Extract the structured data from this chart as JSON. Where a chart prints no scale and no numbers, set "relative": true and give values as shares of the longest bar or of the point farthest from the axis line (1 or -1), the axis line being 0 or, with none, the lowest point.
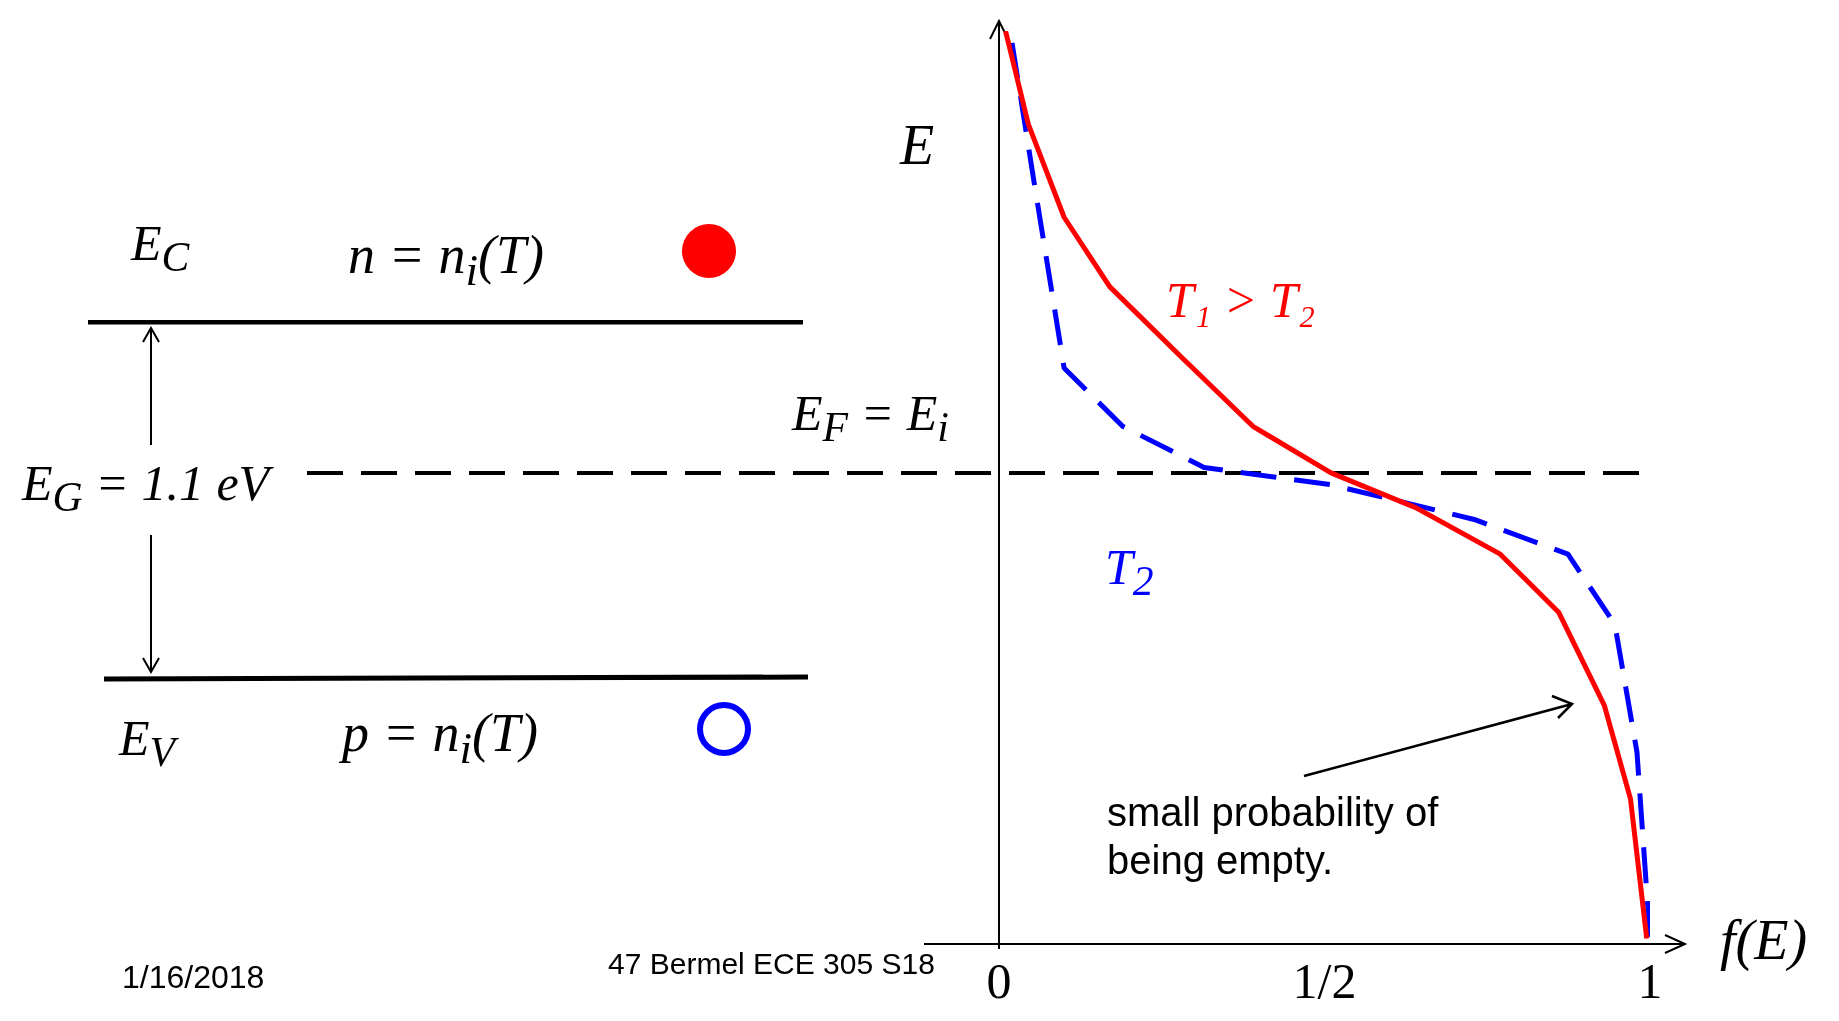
{
  "chart_data": {
    "type": "line",
    "relative": true,
    "xlabel": "f(E)",
    "ylabel": "E",
    "xlim": [
      0,
      1
    ],
    "xticks": [
      0,
      {
        "value": 0.5,
        "label": "1/2"
      },
      1
    ],
    "grid": false,
    "legend": false,
    "marker": "none",
    "series": [
      {
        "color": "#ff0000",
        "line_style": "solid",
        "x": [
          0.01,
          0.045,
          0.1,
          0.17,
          0.28,
          0.39,
          0.51,
          0.64,
          0.77,
          0.86,
          0.93,
          0.97,
          0.995
        ],
        "values": [
          1.0,
          0.898,
          0.796,
          0.72,
          0.643,
          0.567,
          0.516,
          0.478,
          0.427,
          0.363,
          0.261,
          0.159,
          0.006
        ]
      },
      {
        "name": "T$_{2}$",
        "color": "#0000ff",
        "line_style": "dashed",
        "x": [
          0.02,
          0.054,
          0.1,
          0.19,
          0.315,
          0.51,
          0.73,
          0.874,
          0.946,
          0.98,
          1.0
        ],
        "values": [
          0.987,
          0.834,
          0.631,
          0.567,
          0.522,
          0.503,
          0.465,
          0.427,
          0.35,
          0.21,
          0.006
        ]
      }
    ],
    "ref_lines": [
      {
        "axis": "y",
        "value": 0.516,
        "label": "E$_{F}$ = E$_{i}$",
        "color": "#000000",
        "line_style": "dashed"
      }
    ],
    "annotations": [
      "E$_{C}$",
      "n = n$_{i}$(T)",
      "E$_{G}$ = 1.1 eV",
      "E$_{V}$",
      "p = n$_{i}$(T)",
      "T₁ > T₂",
      "small probability of being empty.",
      "1/16/2018",
      "47   Bermel ECE 305 S18"
    ]
  }
}
